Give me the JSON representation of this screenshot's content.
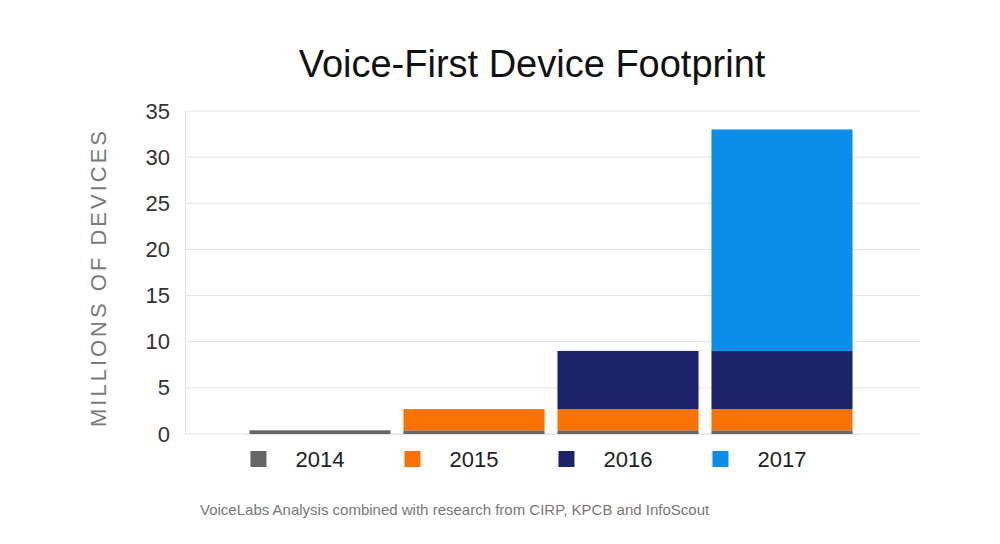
{
  "chart_data": {
    "type": "bar",
    "title": "Voice-First Device Footprint",
    "y_label": "MILLIONS OF DEVICES",
    "annotations": [
      "VoiceLabs Analysis combined with research from CIRP, KPCB and InfoScout"
    ],
    "categories": [
      null,
      null,
      null,
      null
    ],
    "series": [
      {
        "name": "2014",
        "color": "#666666",
        "values": [
          0.4,
          0.4,
          0.4,
          0.4
        ]
      },
      {
        "name": "2015",
        "color": "#fa7204",
        "values": [
          0,
          2.3,
          2.3,
          2.3
        ]
      },
      {
        "name": "2016",
        "color": "#1b2468",
        "values": [
          0,
          0,
          6.3,
          6.3
        ]
      },
      {
        "name": "2017",
        "color": "#0b8ee9",
        "values": [
          0,
          0,
          0,
          24
        ]
      }
    ],
    "ylim": [
      0,
      35
    ],
    "yticks": [
      0,
      5,
      10,
      15,
      20,
      25,
      30,
      35
    ],
    "stacked": true,
    "grid": true,
    "legend": "bottom",
    "tick_labels": "y"
  }
}
